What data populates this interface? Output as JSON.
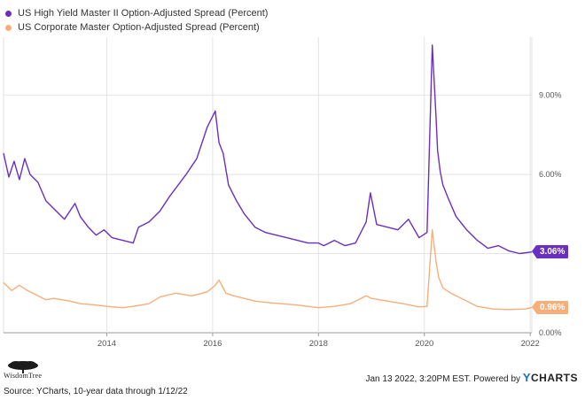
{
  "chart_data": {
    "type": "line",
    "title": "",
    "xlabel": "",
    "ylabel": "",
    "xlim": [
      2012.05,
      2022.03
    ],
    "ylim": [
      0,
      11.2
    ],
    "x_ticks": [
      2014,
      2016,
      2018,
      2020,
      2022
    ],
    "x_tick_labels": [
      "2014",
      "2016",
      "2018",
      "2020",
      "2022"
    ],
    "y_ticks": [
      0,
      3,
      6,
      9
    ],
    "y_tick_labels": [
      "0.00%",
      "3.00%",
      "6.00%",
      "9.00%"
    ],
    "grid": true,
    "legend_position": "top-left",
    "series": [
      {
        "name": "US High Yield Master II Option-Adjusted Spread (Percent)",
        "color": "#6a2fc0",
        "end_label": "3.06%",
        "x": [
          2012.05,
          2012.15,
          2012.25,
          2012.35,
          2012.45,
          2012.55,
          2012.7,
          2012.85,
          2013.0,
          2013.2,
          2013.4,
          2013.5,
          2013.65,
          2013.8,
          2013.95,
          2014.1,
          2014.3,
          2014.5,
          2014.6,
          2014.8,
          2015.0,
          2015.2,
          2015.5,
          2015.7,
          2015.9,
          2016.05,
          2016.12,
          2016.2,
          2016.3,
          2016.45,
          2016.6,
          2016.8,
          2017.0,
          2017.2,
          2017.4,
          2017.6,
          2017.8,
          2018.0,
          2018.1,
          2018.3,
          2018.5,
          2018.7,
          2018.9,
          2018.98,
          2019.1,
          2019.3,
          2019.5,
          2019.7,
          2019.9,
          2020.05,
          2020.15,
          2020.22,
          2020.25,
          2020.3,
          2020.35,
          2020.45,
          2020.6,
          2020.8,
          2021.0,
          2021.2,
          2021.4,
          2021.6,
          2021.8,
          2022.03
        ],
        "values": [
          6.8,
          5.9,
          6.5,
          5.8,
          6.6,
          6.0,
          5.7,
          5.0,
          4.7,
          4.3,
          4.9,
          4.4,
          4.0,
          3.7,
          3.9,
          3.6,
          3.5,
          3.4,
          4.0,
          4.2,
          4.6,
          5.2,
          6.0,
          6.6,
          7.8,
          8.4,
          7.2,
          6.8,
          5.6,
          5.0,
          4.5,
          4.0,
          3.8,
          3.7,
          3.6,
          3.5,
          3.4,
          3.4,
          3.3,
          3.5,
          3.3,
          3.4,
          4.2,
          5.3,
          4.1,
          4.0,
          3.9,
          4.3,
          3.6,
          3.8,
          10.9,
          8.2,
          6.9,
          6.1,
          5.6,
          5.1,
          4.4,
          3.9,
          3.5,
          3.2,
          3.3,
          3.1,
          3.0,
          3.06
        ]
      },
      {
        "name": "US Corporate Master Option-Adjusted Spread (Percent)",
        "color": "#f6ae7b",
        "end_label": "0.96%",
        "x": [
          2012.05,
          2012.2,
          2012.35,
          2012.5,
          2012.7,
          2012.85,
          2013.0,
          2013.3,
          2013.5,
          2013.8,
          2014.0,
          2014.3,
          2014.5,
          2014.8,
          2015.0,
          2015.3,
          2015.6,
          2015.9,
          2016.05,
          2016.12,
          2016.25,
          2016.4,
          2016.6,
          2016.8,
          2017.0,
          2017.3,
          2017.6,
          2018.0,
          2018.3,
          2018.6,
          2018.9,
          2019.0,
          2019.3,
          2019.6,
          2019.9,
          2020.05,
          2020.15,
          2020.22,
          2020.27,
          2020.35,
          2020.5,
          2020.7,
          2021.0,
          2021.3,
          2021.6,
          2021.9,
          2022.03
        ],
        "values": [
          1.9,
          1.6,
          1.8,
          1.6,
          1.4,
          1.25,
          1.3,
          1.2,
          1.1,
          1.05,
          1.0,
          0.95,
          1.0,
          1.1,
          1.35,
          1.5,
          1.4,
          1.55,
          1.8,
          2.0,
          1.5,
          1.4,
          1.3,
          1.2,
          1.15,
          1.1,
          1.05,
          0.95,
          1.0,
          1.1,
          1.4,
          1.3,
          1.2,
          1.1,
          0.98,
          1.0,
          3.9,
          2.7,
          2.1,
          1.7,
          1.5,
          1.3,
          1.0,
          0.9,
          0.88,
          0.9,
          0.96
        ]
      }
    ]
  },
  "footer": {
    "logo_text": "WisdomTree",
    "timestamp": "Jan 13 2022, 3:20PM EST. Powered by",
    "brand_y": "Y",
    "brand_rest": "CHARTS",
    "source": "Source: YCharts, 10-year data through 1/12/22"
  }
}
